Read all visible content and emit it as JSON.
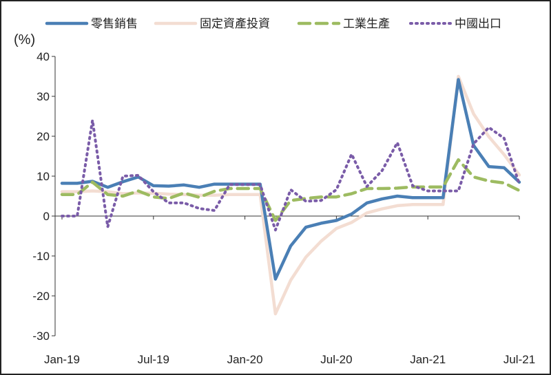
{
  "chart_data": {
    "type": "line",
    "ylabel": "(%)",
    "ylim": [
      -30,
      40
    ],
    "y_ticks": [
      40,
      30,
      20,
      10,
      0,
      -10,
      -20,
      -30
    ],
    "x_tick_labels": [
      "Jan-19",
      "Jul-19",
      "Jan-20",
      "Jul-20",
      "Jan-21",
      "Jul-21"
    ],
    "x_tick_index": [
      0,
      6,
      12,
      18,
      24,
      30
    ],
    "legend_position": "top",
    "x": [
      "2019-01",
      "2019-02",
      "2019-03",
      "2019-04",
      "2019-05",
      "2019-06",
      "2019-07",
      "2019-08",
      "2019-09",
      "2019-10",
      "2019-11",
      "2019-12",
      "2020-01",
      "2020-02",
      "2020-03",
      "2020-04",
      "2020-05",
      "2020-06",
      "2020-07",
      "2020-08",
      "2020-09",
      "2020-10",
      "2020-11",
      "2020-12",
      "2021-01",
      "2021-02",
      "2021-03",
      "2021-04",
      "2021-05",
      "2021-06",
      "2021-07"
    ],
    "series": [
      {
        "name": "零售銷售",
        "color": "#4a7fb5",
        "style": "solid",
        "values": [
          8.2,
          8.2,
          8.7,
          7.2,
          8.6,
          9.8,
          7.6,
          7.5,
          7.8,
          7.2,
          8.0,
          8.0,
          8.0,
          8.0,
          -15.8,
          -7.5,
          -2.8,
          -1.8,
          -1.1,
          0.5,
          3.3,
          4.3,
          5.0,
          4.6,
          4.6,
          4.6,
          34.2,
          17.7,
          12.4,
          12.1,
          8.5
        ]
      },
      {
        "name": "固定資產投資",
        "color": "#f3ddd2",
        "style": "solid",
        "values": [
          6.1,
          6.1,
          6.3,
          6.1,
          5.6,
          5.8,
          5.7,
          5.5,
          5.4,
          5.2,
          5.2,
          5.4,
          5.4,
          5.4,
          -24.5,
          -16.1,
          -10.3,
          -6.3,
          -3.1,
          -1.6,
          0.8,
          1.8,
          2.6,
          2.9,
          2.9,
          2.9,
          35.0,
          25.6,
          19.9,
          15.4,
          10.3
        ]
      },
      {
        "name": "工業生產",
        "color": "#9dbb61",
        "style": "dashed",
        "values": [
          5.4,
          5.4,
          8.5,
          5.4,
          5.0,
          6.3,
          4.8,
          4.4,
          5.8,
          4.7,
          6.2,
          6.9,
          6.9,
          6.9,
          -1.1,
          3.9,
          4.4,
          4.8,
          4.8,
          5.6,
          6.9,
          6.9,
          7.0,
          7.3,
          7.3,
          7.3,
          14.1,
          9.8,
          8.8,
          8.3,
          6.4
        ]
      },
      {
        "name": "中國出口",
        "color": "#7a5ca8",
        "style": "dotted",
        "values": [
          0,
          0,
          24.0,
          -2.7,
          10.0,
          10.2,
          6.1,
          3.3,
          3.3,
          1.9,
          1.4,
          7.9,
          7.9,
          7.9,
          -3.5,
          6.6,
          3.7,
          3.9,
          6.6,
          15.5,
          7.4,
          11.4,
          18.4,
          7.6,
          6.3,
          6.3,
          6.3,
          18.1,
          22.2,
          19.5,
          8.0
        ]
      }
    ]
  }
}
